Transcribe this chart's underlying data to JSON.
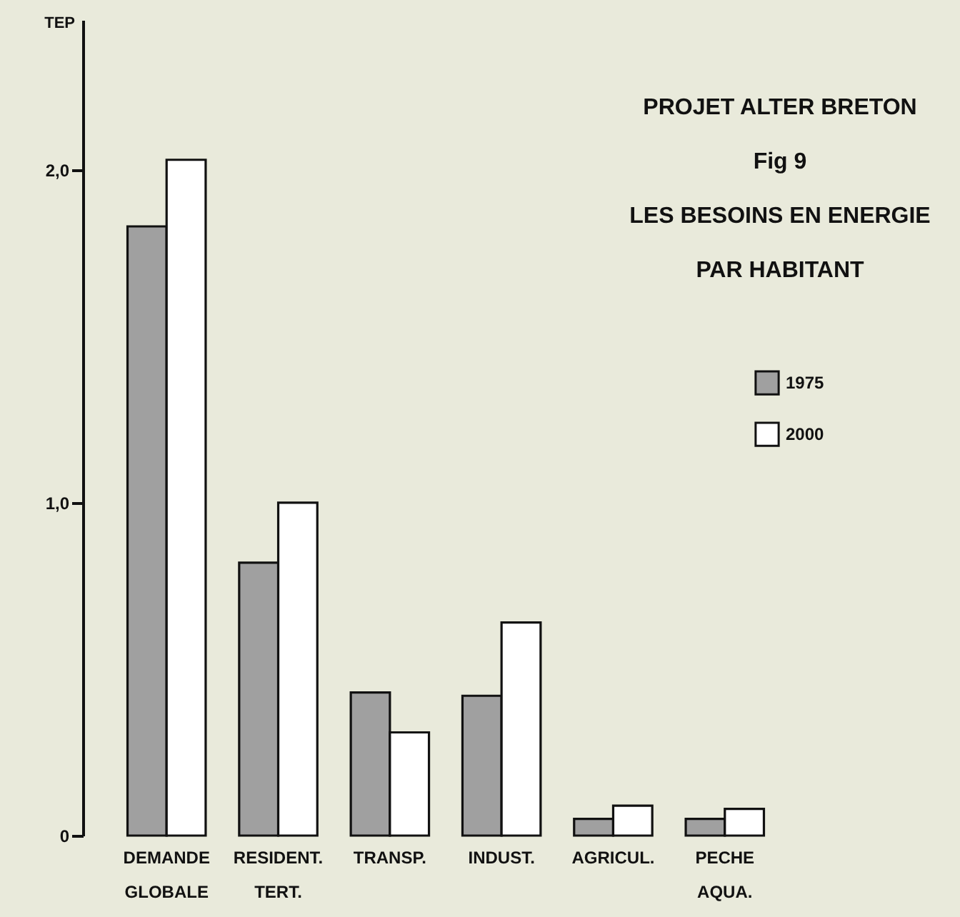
{
  "chart_data": {
    "type": "bar",
    "title": "PROJET ALTER BRETON",
    "subtitle": "Fig 9\nLES BESOINS EN ENERGIE\nPAR HABITANT",
    "ylabel": "TEP",
    "categories": [
      "DEMANDE\nGLOBALE",
      "RESIDENT.\nTERT.",
      "TRANSP.",
      "INDUST.",
      "AGRICUL.",
      "PECHE\nAQUA."
    ],
    "series": [
      {
        "name": "1975",
        "color": "#a0a0a0",
        "values": [
          1.83,
          0.82,
          0.43,
          0.42,
          0.05,
          0.05
        ]
      },
      {
        "name": "2000",
        "color": "#ffffff",
        "values": [
          2.03,
          1.0,
          0.31,
          0.64,
          0.09,
          0.08
        ]
      }
    ],
    "ylim": [
      0,
      2.45
    ],
    "yticks": [
      {
        "value": 0,
        "label": "0"
      },
      {
        "value": 1,
        "label": "1,0"
      },
      {
        "value": 2,
        "label": "2,0"
      }
    ],
    "grid": false,
    "legend": "right"
  }
}
